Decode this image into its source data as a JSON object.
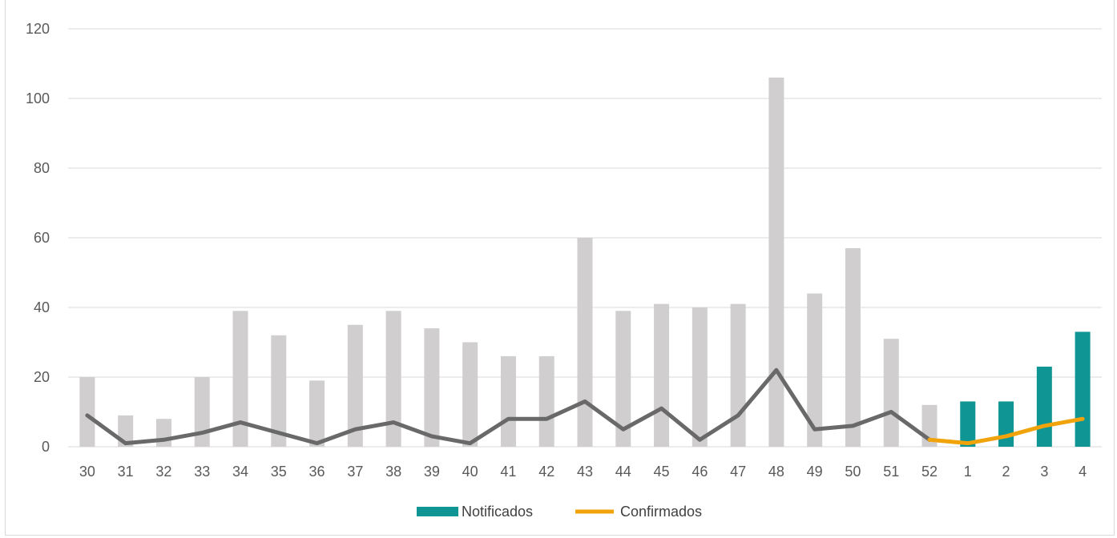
{
  "chart_data": {
    "type": "bar",
    "title": "",
    "xlabel": "",
    "ylabel": "",
    "ylim": [
      0,
      120
    ],
    "yticks": [
      0,
      20,
      40,
      60,
      80,
      100,
      120
    ],
    "grid": true,
    "legend_position": "bottom",
    "categories": [
      "30",
      "31",
      "32",
      "33",
      "34",
      "35",
      "36",
      "37",
      "38",
      "39",
      "40",
      "41",
      "42",
      "43",
      "44",
      "45",
      "46",
      "47",
      "48",
      "49",
      "50",
      "51",
      "52",
      "1",
      "2",
      "3",
      "4"
    ],
    "series": [
      {
        "name": "",
        "kind": "bar",
        "color": "#d0cece",
        "values": [
          20,
          9,
          8,
          20,
          39,
          32,
          19,
          35,
          39,
          34,
          30,
          26,
          26,
          60,
          39,
          41,
          40,
          41,
          106,
          44,
          57,
          31,
          12,
          null,
          null,
          null,
          null
        ]
      },
      {
        "name": "Notificados",
        "kind": "bar",
        "color": "#0e9594",
        "values": [
          null,
          null,
          null,
          null,
          null,
          null,
          null,
          null,
          null,
          null,
          null,
          null,
          null,
          null,
          null,
          null,
          null,
          null,
          null,
          null,
          null,
          null,
          null,
          13,
          13,
          23,
          33
        ]
      },
      {
        "name": "",
        "kind": "line",
        "color": "#696969",
        "values": [
          9,
          1,
          2,
          4,
          7,
          4,
          1,
          5,
          7,
          3,
          1,
          8,
          8,
          13,
          5,
          11,
          2,
          9,
          22,
          5,
          6,
          10,
          2,
          null,
          null,
          null,
          null
        ]
      },
      {
        "name": "Confirmados",
        "kind": "line",
        "color": "#f0a30a",
        "values": [
          null,
          null,
          null,
          null,
          null,
          null,
          null,
          null,
          null,
          null,
          null,
          null,
          null,
          null,
          null,
          null,
          null,
          null,
          null,
          null,
          null,
          null,
          2,
          1,
          3,
          6,
          8
        ]
      }
    ]
  }
}
